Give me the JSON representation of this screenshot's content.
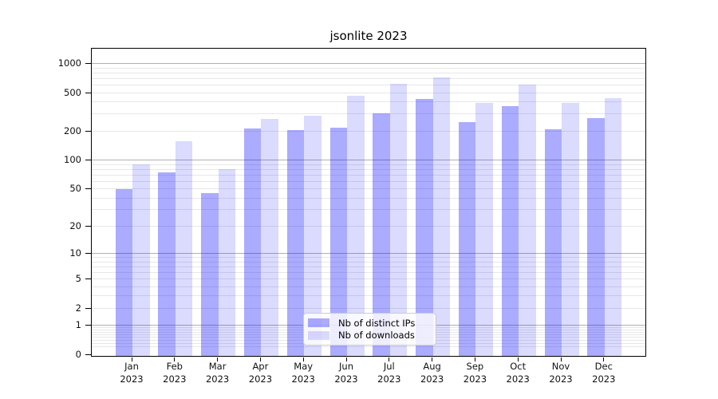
{
  "title": "jsonlite 2023",
  "year_label": "2023",
  "months": [
    "Jan",
    "Feb",
    "Mar",
    "Apr",
    "May",
    "Jun",
    "Jul",
    "Aug",
    "Sep",
    "Oct",
    "Nov",
    "Dec"
  ],
  "legend": {
    "items": [
      {
        "label": "Nb of distinct IPs",
        "key": "distinct_ips"
      },
      {
        "label": "Nb of downloads",
        "key": "downloads"
      }
    ]
  },
  "colors": {
    "distinct_ips": "rgba(0,0,255,0.33)",
    "downloads": "rgba(0,0,255,0.14)",
    "major_gridline": "#b0b0b0",
    "minor_gridline": "#e7e7e7",
    "axis": "#000000",
    "legend_border": "#cccccc"
  },
  "chart_data": {
    "type": "bar",
    "title": "jsonlite 2023",
    "categories": [
      "Jan 2023",
      "Feb 2023",
      "Mar 2023",
      "Apr 2023",
      "May 2023",
      "Jun 2023",
      "Jul 2023",
      "Aug 2023",
      "Sep 2023",
      "Oct 2023",
      "Nov 2023",
      "Dec 2023"
    ],
    "series": [
      {
        "name": "Nb of distinct IPs",
        "values": [
          49,
          74,
          45,
          212,
          202,
          216,
          300,
          425,
          245,
          360,
          207,
          268
        ]
      },
      {
        "name": "Nb of downloads",
        "values": [
          90,
          154,
          79,
          265,
          283,
          460,
          612,
          710,
          385,
          600,
          390,
          430
        ]
      }
    ],
    "xlabel": "",
    "ylabel": "",
    "y_scale": "log10(value+1)",
    "y_ticks": [
      0,
      1,
      2,
      5,
      10,
      20,
      50,
      100,
      200,
      500,
      1000
    ],
    "ylim": [
      0,
      1430
    ],
    "grid": true,
    "legend_position": "lower center"
  }
}
